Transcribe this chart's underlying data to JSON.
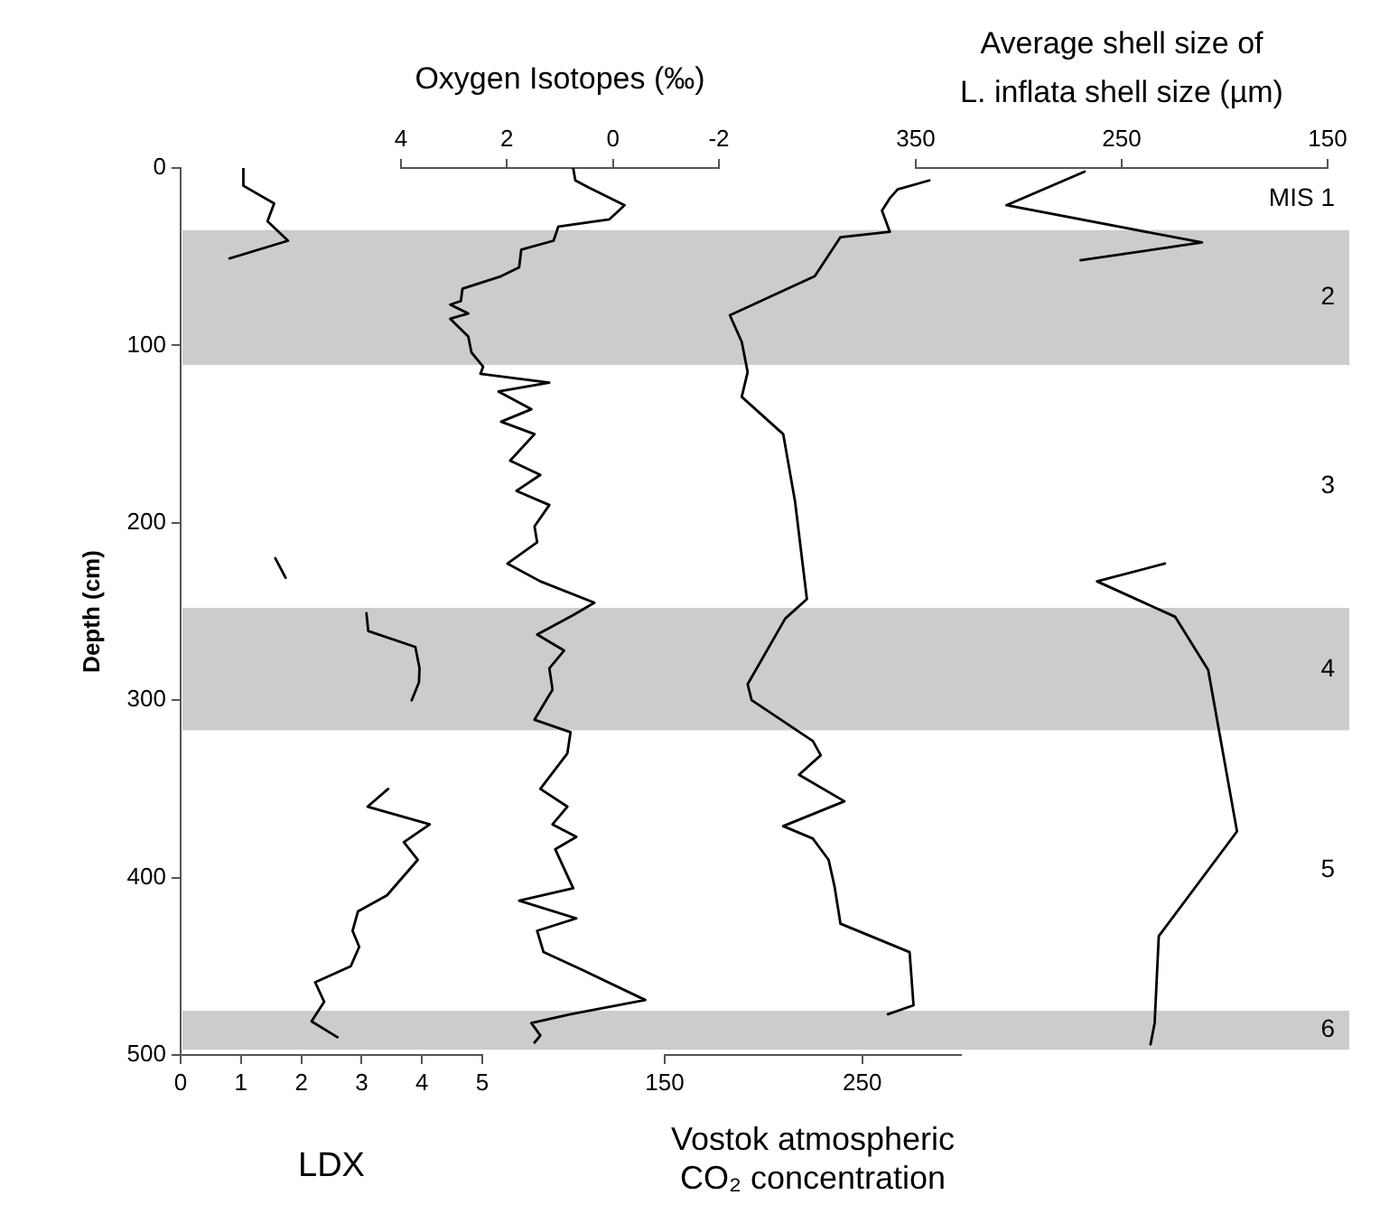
{
  "chart_data": [
    {
      "type": "line",
      "marker": "none",
      "line_style": "solid",
      "ylabel": "Depth (cm)",
      "ylim": [
        500,
        0
      ],
      "yticks": [
        0,
        100,
        200,
        300,
        400,
        500
      ],
      "xlabel": "LDX",
      "xlim": [
        0,
        5
      ],
      "xticks": [
        0,
        1,
        2,
        3,
        4,
        5
      ],
      "series": [
        {
          "color": "#000000",
          "x": [
            1.04,
            1.04,
            1.55,
            1.44,
            1.78,
            0.81,
            null,
            1.57,
            1.74,
            null,
            3.08,
            3.11,
            3.89,
            3.96,
            3.95,
            3.83,
            null,
            3.44,
            3.1,
            4.13,
            3.7,
            3.93,
            3.42,
            2.94,
            2.85,
            2.96,
            2.82,
            2.23,
            2.38,
            2.17,
            2.6
          ],
          "values": [
            0,
            10,
            20,
            30,
            41,
            51,
            null,
            220,
            231,
            null,
            251,
            261,
            270,
            282,
            290,
            300,
            null,
            350,
            360,
            370,
            380,
            390,
            410,
            419,
            430,
            439,
            450,
            459,
            470,
            481,
            490
          ]
        }
      ],
      "bands": [
        {
          "axis": "y",
          "from": 35,
          "to": 111,
          "label": "2",
          "color": "#cccccc"
        },
        {
          "axis": "y",
          "from": 248,
          "to": 317,
          "label": "4",
          "color": "#cccccc"
        },
        {
          "axis": "y",
          "from": 475,
          "to": 497,
          "label": "6",
          "color": "#cccccc"
        }
      ],
      "annotations": [
        "MIS 1",
        "3",
        "5"
      ]
    },
    {
      "type": "line",
      "marker": "none",
      "line_style": "solid",
      "ylim": [
        500,
        0
      ],
      "tick_labels": "x",
      "xlabel": "Oxygen Isotopes (‰)",
      "xlim": [
        4,
        -2
      ],
      "xticks": [
        4,
        2,
        0,
        -2
      ],
      "series": [
        {
          "color": "#000000",
          "x": [
            0.75,
            0.71,
            0.46,
            -0.22,
            0.07,
            1.03,
            1.12,
            1.73,
            1.77,
            2.11,
            2.84,
            2.87,
            3.07,
            2.73,
            3.07,
            2.73,
            2.67,
            2.45,
            2.5,
            1.2,
            2.16,
            1.54,
            2.11,
            1.48,
            1.94,
            1.37,
            1.82,
            1.2,
            1.48,
            1.43,
            1.99,
            1.37,
            0.35,
            0.75,
            1.43,
            0.92,
            1.2,
            1.14,
            1.48,
            0.8,
            0.86,
            1.37,
            0.86,
            1.14,
            0.69,
            1.09,
            0.75,
            1.77,
            0.69,
            1.43,
            1.31,
            0.58,
            -0.61,
            0.8,
            1.54,
            1.37,
            1.48
          ],
          "values": [
            0,
            7,
            11,
            21,
            29,
            33,
            41,
            46,
            56,
            61,
            68,
            75,
            77,
            82,
            85,
            95,
            104,
            112,
            116,
            121,
            126,
            136,
            143,
            150,
            165,
            173,
            182,
            190,
            202,
            211,
            223,
            233,
            245,
            252,
            263,
            272,
            282,
            294,
            311,
            318,
            330,
            350,
            360,
            370,
            377,
            384,
            406,
            413,
            423,
            430,
            442,
            452,
            469,
            477,
            482,
            489,
            493
          ]
        }
      ]
    },
    {
      "type": "line",
      "marker": "none",
      "line_style": "solid",
      "ylim": [
        500,
        0
      ],
      "tick_labels": "x",
      "xlabel": "Vostok atmospheric\nCO₂ concentration",
      "xlim": [
        150,
        300
      ],
      "xticks": [
        150,
        250
      ],
      "series": [
        {
          "color": "#000000",
          "x": [
            284,
            268,
            264,
            260,
            264,
            239,
            226,
            183,
            189,
            192,
            189,
            210,
            216,
            222,
            211,
            192,
            194,
            225,
            229,
            218,
            241,
            210,
            225,
            233,
            236,
            239,
            274,
            276,
            263
          ],
          "values": [
            7,
            12,
            17,
            24,
            36,
            39,
            61,
            83,
            98,
            115,
            129,
            150,
            188,
            243,
            254,
            291,
            300,
            323,
            331,
            342,
            357,
            371,
            378,
            390,
            405,
            426,
            442,
            472,
            477
          ]
        }
      ]
    },
    {
      "type": "line",
      "marker": "none",
      "line_style": "solid",
      "ylim": [
        500,
        0
      ],
      "tick_labels": "x",
      "xlabel": "Average shell size of\nL. inflata shell size (µm)",
      "xlim": [
        350,
        150
      ],
      "xticks": [
        350,
        250,
        150
      ],
      "series": [
        {
          "color": "#000000",
          "x": [
            268,
            306,
            211,
            270,
            null,
            229,
            262,
            224,
            208,
            194,
            232,
            234,
            236
          ],
          "values": [
            2,
            21,
            42,
            52,
            null,
            223,
            233,
            253,
            283,
            374,
            433,
            482,
            494
          ]
        }
      ]
    }
  ]
}
